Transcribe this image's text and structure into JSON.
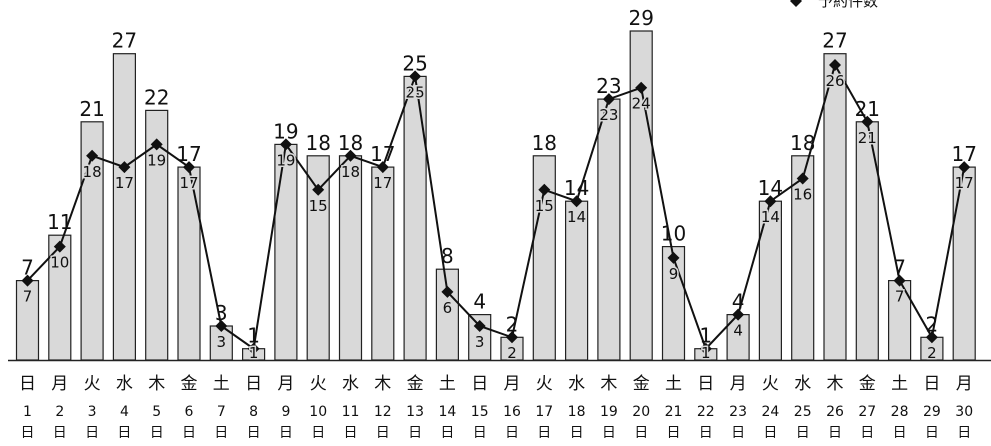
{
  "chart_data": {
    "type": "bar",
    "categories_weekday": [
      "日",
      "月",
      "火",
      "水",
      "木",
      "金",
      "土",
      "日",
      "月",
      "火",
      "水",
      "木",
      "金",
      "土",
      "日",
      "月",
      "火",
      "水",
      "木",
      "金",
      "土",
      "日",
      "月",
      "火",
      "水",
      "木",
      "金",
      "土",
      "日",
      "月"
    ],
    "categories_date": [
      "1",
      "2",
      "3",
      "4",
      "5",
      "6",
      "7",
      "8",
      "9",
      "10",
      "11",
      "12",
      "13",
      "14",
      "15",
      "16",
      "17",
      "18",
      "19",
      "20",
      "21",
      "22",
      "23",
      "24",
      "25",
      "26",
      "27",
      "28",
      "29",
      "30"
    ],
    "date_unit": "日",
    "series": [
      {
        "values": [
          7,
          11,
          21,
          27,
          22,
          17,
          3,
          1,
          19,
          18,
          18,
          17,
          25,
          8,
          4,
          2,
          18,
          14,
          23,
          29,
          10,
          1,
          4,
          14,
          18,
          27,
          21,
          7,
          2,
          17
        ]
      },
      {
        "name": "予約件数",
        "values": [
          7,
          10,
          18,
          17,
          19,
          17,
          3,
          1,
          19,
          15,
          18,
          17,
          25,
          6,
          3,
          2,
          15,
          14,
          23,
          24,
          9,
          1,
          4,
          14,
          16,
          26,
          21,
          7,
          2,
          17
        ]
      }
    ],
    "ylim": [
      0,
      29
    ],
    "legend": "top-right"
  }
}
